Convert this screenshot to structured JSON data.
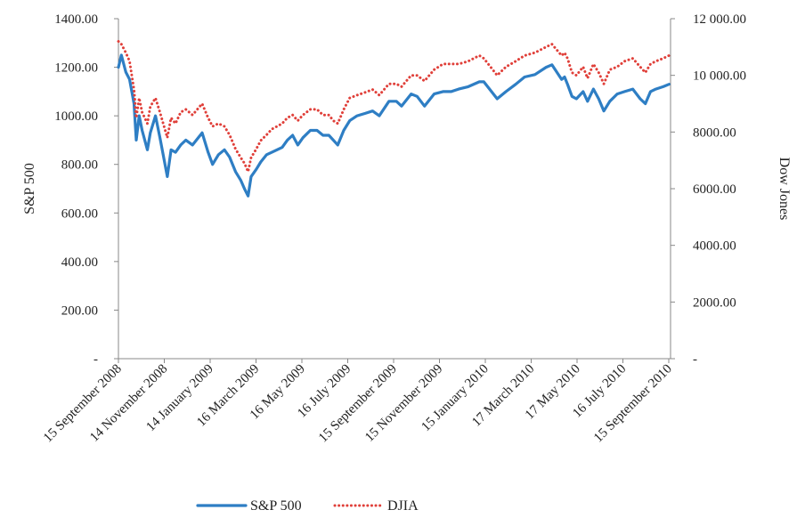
{
  "chart_data": {
    "type": "line",
    "title": "",
    "xlabel": "",
    "ylabel_left": "S&P 500",
    "ylabel_right": "Dow Jones",
    "ylim_left": [
      0,
      1400
    ],
    "ylim_right": [
      0,
      12000
    ],
    "left_ticks": [
      {
        "value": 0,
        "label": "-"
      },
      {
        "value": 200,
        "label": "200.00"
      },
      {
        "value": 400,
        "label": "400.00"
      },
      {
        "value": 600,
        "label": "600.00"
      },
      {
        "value": 800,
        "label": "800.00"
      },
      {
        "value": 1000,
        "label": "1000.00"
      },
      {
        "value": 1200,
        "label": "1200.00"
      },
      {
        "value": 1400,
        "label": "1400.00"
      }
    ],
    "right_ticks": [
      {
        "value": 0,
        "label": "-"
      },
      {
        "value": 2000,
        "label": "2000.00"
      },
      {
        "value": 4000,
        "label": "4000.00"
      },
      {
        "value": 6000,
        "label": "6000.00"
      },
      {
        "value": 8000,
        "label": "8000.00"
      },
      {
        "value": 10000,
        "label": "10 000.00"
      },
      {
        "value": 12000,
        "label": "12 000.00"
      }
    ],
    "x_ticks": [
      "15 September 2008",
      "14 November 2008",
      "14 January 2009",
      "16 March 2009",
      "16 May 2009",
      "16 July 2009",
      "15 September 2009",
      "15 November 2009",
      "15 January 2010",
      "17 March 2010",
      "17 May 2010",
      "16 July 2010",
      "15 September 2010"
    ],
    "grid": false,
    "legend_position": "bottom",
    "series": [
      {
        "name": "S&P 500",
        "axis": "left",
        "style": "solid",
        "color": "#2E7EC4",
        "x": [
          "2008-09-15",
          "2008-09-19",
          "2008-09-25",
          "2008-09-30",
          "2008-10-06",
          "2008-10-09",
          "2008-10-13",
          "2008-10-17",
          "2008-10-24",
          "2008-10-28",
          "2008-11-04",
          "2008-11-10",
          "2008-11-20",
          "2008-11-25",
          "2008-12-01",
          "2008-12-08",
          "2008-12-15",
          "2008-12-24",
          "2009-01-06",
          "2009-01-14",
          "2009-01-20",
          "2009-01-28",
          "2009-02-05",
          "2009-02-12",
          "2009-02-20",
          "2009-02-27",
          "2009-03-04",
          "2009-03-09",
          "2009-03-13",
          "2009-03-20",
          "2009-03-26",
          "2009-04-03",
          "2009-04-10",
          "2009-04-17",
          "2009-04-24",
          "2009-05-01",
          "2009-05-08",
          "2009-05-15",
          "2009-05-22",
          "2009-06-01",
          "2009-06-10",
          "2009-06-18",
          "2009-06-26",
          "2009-07-02",
          "2009-07-08",
          "2009-07-16",
          "2009-07-24",
          "2009-08-03",
          "2009-08-14",
          "2009-08-24",
          "2009-09-02",
          "2009-09-15",
          "2009-09-25",
          "2009-10-02",
          "2009-10-15",
          "2009-10-23",
          "2009-11-02",
          "2009-11-15",
          "2009-11-27",
          "2009-12-08",
          "2009-12-18",
          "2009-12-31",
          "2010-01-15",
          "2010-01-21",
          "2010-02-08",
          "2010-02-20",
          "2010-03-05",
          "2010-03-17",
          "2010-03-31",
          "2010-04-15",
          "2010-04-23",
          "2010-05-06",
          "2010-05-10",
          "2010-05-14",
          "2010-05-20",
          "2010-05-26",
          "2010-06-04",
          "2010-06-10",
          "2010-06-18",
          "2010-06-25",
          "2010-07-02",
          "2010-07-10",
          "2010-07-20",
          "2010-07-30",
          "2010-08-10",
          "2010-08-20",
          "2010-08-27",
          "2010-09-03",
          "2010-09-10",
          "2010-09-20",
          "2010-09-28"
        ],
        "values": [
          1200,
          1250,
          1180,
          1150,
          1050,
          900,
          1000,
          940,
          860,
          930,
          1000,
          910,
          750,
          860,
          850,
          880,
          900,
          880,
          930,
          850,
          800,
          840,
          860,
          830,
          770,
          735,
          700,
          670,
          750,
          780,
          810,
          840,
          850,
          860,
          870,
          900,
          920,
          880,
          910,
          940,
          940,
          920,
          920,
          900,
          880,
          940,
          980,
          1000,
          1010,
          1020,
          1000,
          1060,
          1060,
          1040,
          1090,
          1080,
          1040,
          1090,
          1100,
          1100,
          1110,
          1120,
          1140,
          1140,
          1070,
          1100,
          1130,
          1160,
          1170,
          1200,
          1210,
          1150,
          1160,
          1130,
          1080,
          1070,
          1100,
          1060,
          1110,
          1070,
          1020,
          1060,
          1090,
          1100,
          1110,
          1070,
          1050,
          1100,
          1110,
          1120,
          1130
        ]
      },
      {
        "name": "DJIA",
        "axis": "right",
        "style": "dotted",
        "color": "#E0403A",
        "x": [
          "2008-09-15",
          "2008-09-19",
          "2008-09-25",
          "2008-09-30",
          "2008-10-06",
          "2008-10-09",
          "2008-10-13",
          "2008-10-17",
          "2008-10-24",
          "2008-10-28",
          "2008-11-04",
          "2008-11-10",
          "2008-11-20",
          "2008-11-25",
          "2008-12-01",
          "2008-12-08",
          "2008-12-15",
          "2008-12-24",
          "2009-01-06",
          "2009-01-14",
          "2009-01-20",
          "2009-01-28",
          "2009-02-05",
          "2009-02-12",
          "2009-02-20",
          "2009-02-27",
          "2009-03-04",
          "2009-03-09",
          "2009-03-13",
          "2009-03-20",
          "2009-03-26",
          "2009-04-03",
          "2009-04-10",
          "2009-04-17",
          "2009-04-24",
          "2009-05-01",
          "2009-05-08",
          "2009-05-15",
          "2009-05-22",
          "2009-06-01",
          "2009-06-10",
          "2009-06-18",
          "2009-06-26",
          "2009-07-02",
          "2009-07-08",
          "2009-07-16",
          "2009-07-24",
          "2009-08-03",
          "2009-08-14",
          "2009-08-24",
          "2009-09-02",
          "2009-09-15",
          "2009-09-25",
          "2009-10-02",
          "2009-10-15",
          "2009-10-23",
          "2009-11-02",
          "2009-11-15",
          "2009-11-27",
          "2009-12-08",
          "2009-12-18",
          "2009-12-31",
          "2010-01-15",
          "2010-01-21",
          "2010-02-08",
          "2010-02-20",
          "2010-03-05",
          "2010-03-17",
          "2010-03-31",
          "2010-04-15",
          "2010-04-23",
          "2010-05-06",
          "2010-05-10",
          "2010-05-14",
          "2010-05-20",
          "2010-05-26",
          "2010-06-04",
          "2010-06-10",
          "2010-06-18",
          "2010-06-25",
          "2010-07-02",
          "2010-07-10",
          "2010-07-20",
          "2010-07-30",
          "2010-08-10",
          "2010-08-20",
          "2010-08-27",
          "2010-09-03",
          "2010-09-10",
          "2010-09-20",
          "2010-09-28"
        ],
        "values": [
          11200,
          11100,
          10800,
          10500,
          9500,
          8500,
          9200,
          8700,
          8300,
          8900,
          9200,
          8700,
          7800,
          8500,
          8300,
          8700,
          8800,
          8600,
          9000,
          8500,
          8200,
          8300,
          8200,
          7900,
          7400,
          7100,
          6900,
          6600,
          7100,
          7400,
          7700,
          7900,
          8100,
          8200,
          8300,
          8500,
          8600,
          8400,
          8600,
          8800,
          8800,
          8600,
          8600,
          8400,
          8300,
          8800,
          9200,
          9300,
          9400,
          9500,
          9300,
          9700,
          9700,
          9600,
          10000,
          10000,
          9800,
          10200,
          10400,
          10400,
          10400,
          10500,
          10700,
          10600,
          10000,
          10300,
          10500,
          10700,
          10800,
          11000,
          11100,
          10700,
          10800,
          10600,
          10100,
          10000,
          10300,
          9900,
          10400,
          10100,
          9700,
          10200,
          10300,
          10500,
          10600,
          10300,
          10100,
          10400,
          10500,
          10600,
          10700
        ]
      }
    ]
  }
}
